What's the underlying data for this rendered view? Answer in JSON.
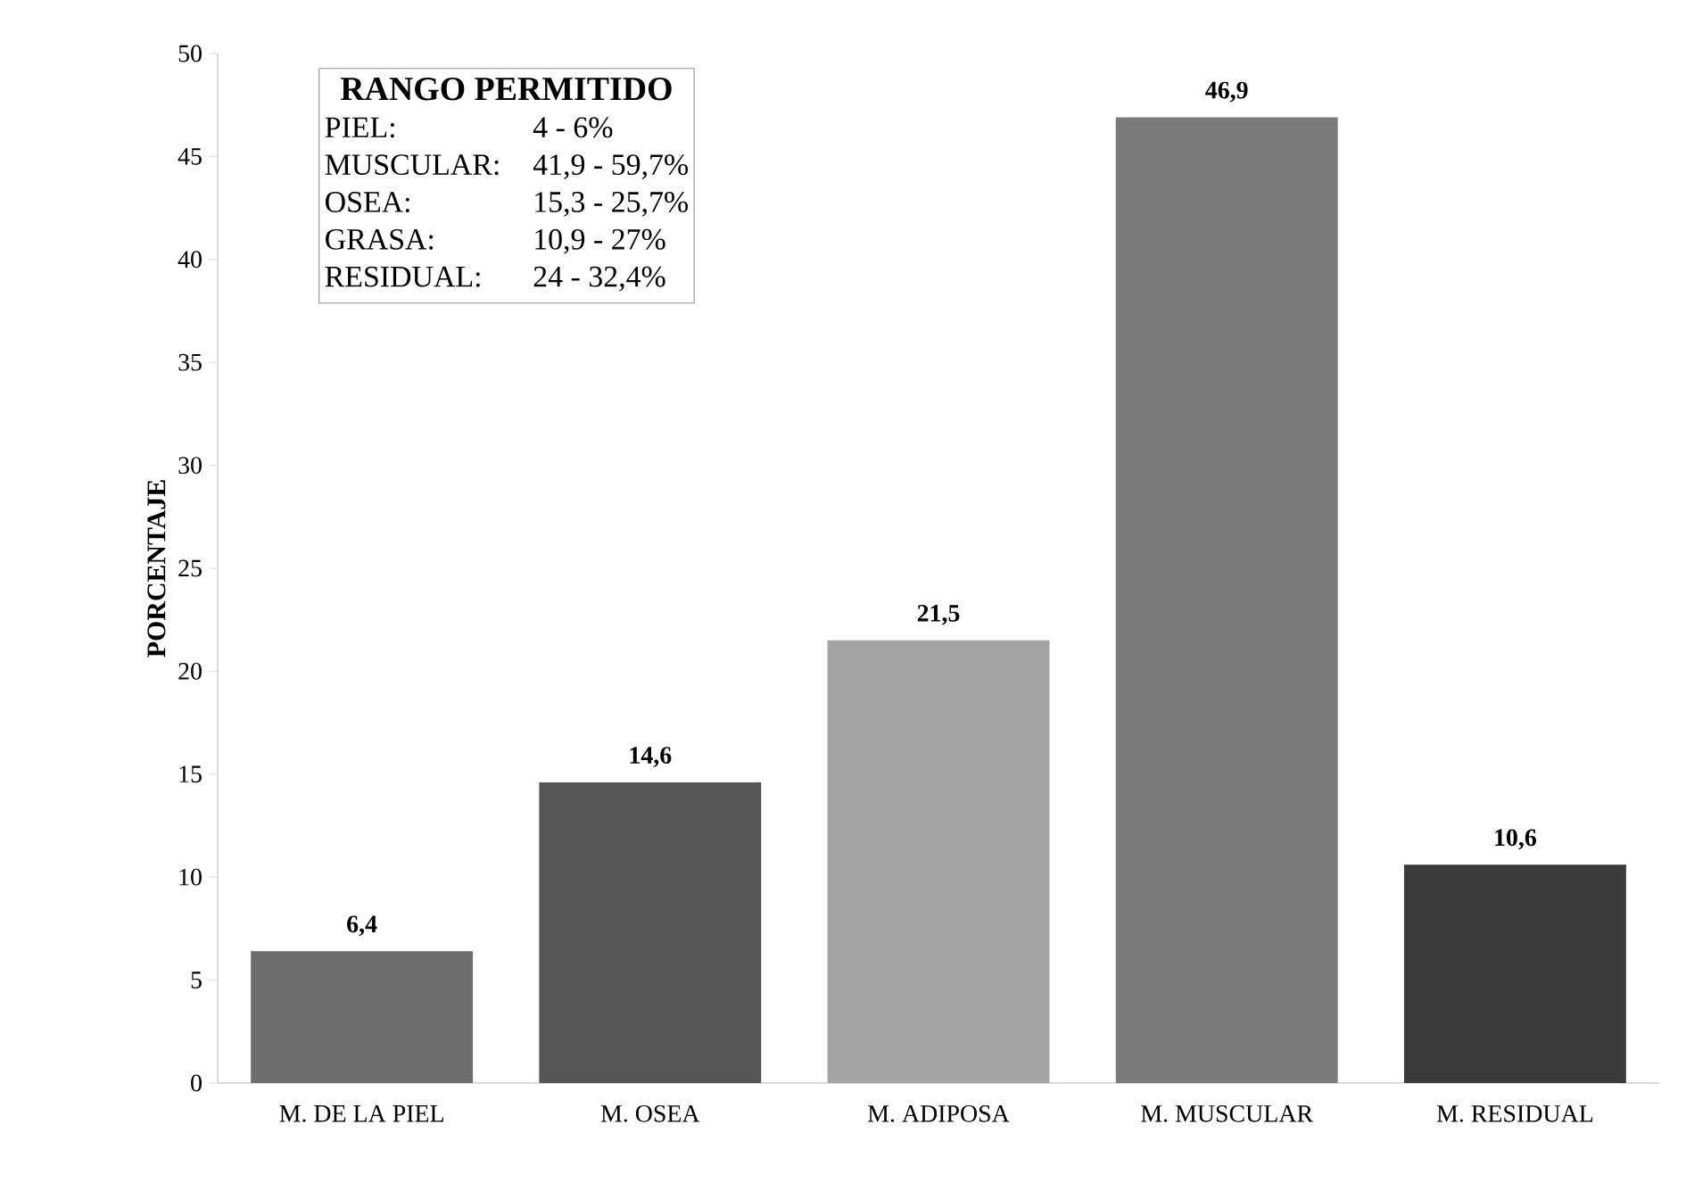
{
  "chart_data": {
    "type": "bar",
    "ylabel": "PORCENTAJE",
    "categories": [
      "M. DE LA PIEL",
      "M. OSEA",
      "M. ADIPOSA",
      "M. MUSCULAR",
      "M. RESIDUAL"
    ],
    "values": [
      6.4,
      14.6,
      21.5,
      46.9,
      10.6
    ],
    "value_labels": [
      "6,4",
      "14,6",
      "21,5",
      "46,9",
      "10,6"
    ],
    "colors": [
      "#6d6d6d",
      "#555555",
      "#a3a3a3",
      "#7a7a7a",
      "#3a3a3a"
    ],
    "ylim": [
      0,
      50
    ],
    "yticks": [
      0,
      5,
      10,
      15,
      20,
      25,
      30,
      35,
      40,
      45,
      50
    ],
    "annotations": [
      "RANGO PERMITIDO",
      "PIEL:",
      "4 - 6%",
      "MUSCULAR:",
      "41,9 - 59,7%",
      "OSEA:",
      "15,3 - 25,7%",
      "GRASA:",
      "10,9 - 27%",
      "RESIDUAL:",
      "24 - 32,4%"
    ]
  }
}
